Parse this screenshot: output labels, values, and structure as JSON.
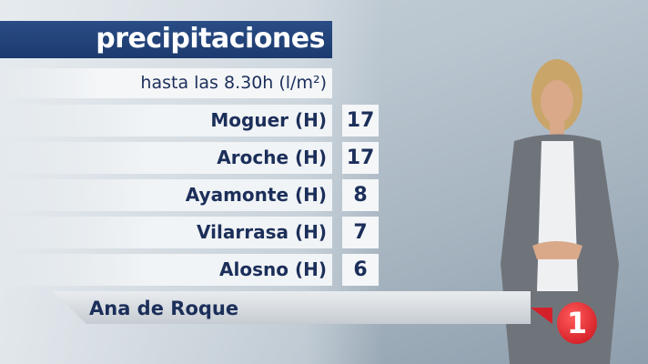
{
  "graphic": {
    "title": "precipitaciones",
    "subtitle": "hasta las 8.30h (l/m²)",
    "rows": [
      {
        "place": "Moguer (H)",
        "value": "17"
      },
      {
        "place": "Aroche (H)",
        "value": "17"
      },
      {
        "place": "Ayamonte (H)",
        "value": "8"
      },
      {
        "place": "Vilarrasa (H)",
        "value": "7"
      },
      {
        "place": "Alosno (H)",
        "value": "6"
      }
    ]
  },
  "lower_third": {
    "presenter": "Ana de Roque"
  },
  "channel_logo": {
    "label": "1",
    "color": "#d4202a"
  },
  "colors": {
    "title_bg": "#1c3a6e",
    "text": "#1c2f5a"
  }
}
